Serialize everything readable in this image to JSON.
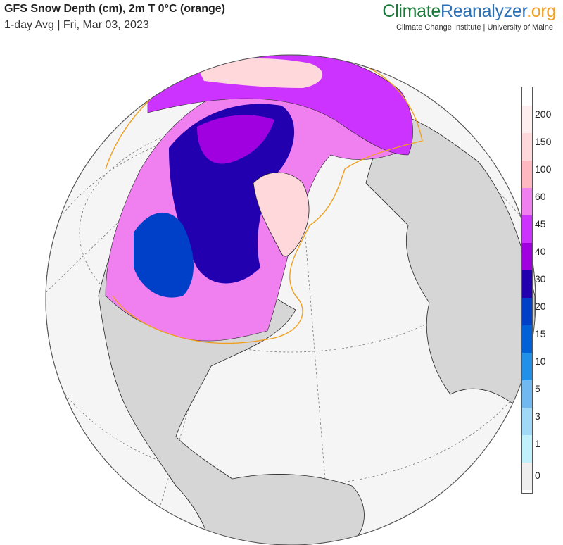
{
  "header": {
    "title": "GFS Snow Depth (cm), 2m T 0°C (orange)",
    "subtitle": "1-day Avg | Fri, Mar 03, 2023"
  },
  "branding": {
    "name_part1": "Climate",
    "name_part2": "Reanalyzer",
    "name_part3": ".org",
    "affiliation": "Climate Change Institute | University of Maine"
  },
  "colors": {
    "ocean": "#f5f5f5",
    "land": "#d6d6d6",
    "freezing_line": "#f0a020",
    "deep_snow": "#1a00b0",
    "mid_snow": "#c040ff",
    "light_snow": "#ffd6e6"
  },
  "legend": {
    "bins": [
      {
        "label": "200",
        "color": "#ffeef0"
      },
      {
        "label": "150",
        "color": "#ffd8dc"
      },
      {
        "label": "100",
        "color": "#ffb8c0"
      },
      {
        "label": "60",
        "color": "#f080f0"
      },
      {
        "label": "45",
        "color": "#cc33ff"
      },
      {
        "label": "40",
        "color": "#a000e0"
      },
      {
        "label": "30",
        "color": "#2200b0"
      },
      {
        "label": "20",
        "color": "#0040c8"
      },
      {
        "label": "15",
        "color": "#0060d8"
      },
      {
        "label": "10",
        "color": "#2090e8"
      },
      {
        "label": "5",
        "color": "#70b8f0"
      },
      {
        "label": "3",
        "color": "#a0d8f8"
      },
      {
        "label": "1",
        "color": "#c0f0fc"
      },
      {
        "label": "0",
        "color": "#eeeeee"
      }
    ]
  }
}
